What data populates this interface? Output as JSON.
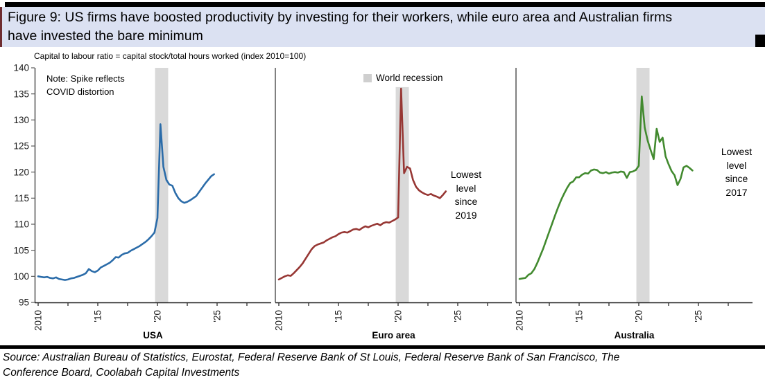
{
  "page": {
    "title_lines": [
      "Figure 9: US firms have boosted productivity by investing for their workers, while euro area and Australian firms",
      "have invested the bare minimum"
    ],
    "subtitle": "Capital to labour ratio = capital stock/total hours worked (index 2010=100)",
    "source_lines": [
      "Source: Australian Bureau of Statistics, Eurostat, Federal Reserve Bank of St Louis, Federal Reserve Bank of San Francisco, The",
      "Conference Board, Coolabah Capital Investments"
    ]
  },
  "annotations": {
    "note_lines": [
      "Note: Spike reflects",
      "COVID distortion"
    ],
    "legend_label": "World recession",
    "euro_lowest_lines": [
      "Lowest",
      "level",
      "since",
      "2019"
    ],
    "aus_lowest_lines": [
      "Lowest",
      "level",
      "since",
      "2017"
    ]
  },
  "colors": {
    "title_bg": "#dbe1f2",
    "accent_strip": "#6e2c30",
    "band": "#d9d9d9",
    "usa_line": "#2b6ca9",
    "euro_line": "#973734",
    "aus_line": "#428a2f",
    "axis": "#1a1a1a",
    "y_axis": "#595959",
    "separator": "#808080"
  },
  "chart_data": {
    "type": "line",
    "title": "Capital to labour ratio = capital stock/total hours worked (index 2010=100)",
    "ylim": [
      95,
      140
    ],
    "ytick_step": 5,
    "xtick_start": 2010,
    "xtick_step": 2.5,
    "xtick_count": 8,
    "xtick_labels": {
      "2010": "2010",
      "2015": "'15",
      "2020": "'20",
      "2025": "'25"
    },
    "recession_band_years": [
      2019.8,
      2020.9
    ],
    "legend": {
      "label": "World recession",
      "position": "top-middle-panel"
    },
    "grid": false,
    "panels": [
      {
        "label": "USA",
        "color": "#2b6ca9",
        "band_top_value": 140,
        "x_start": 2010,
        "x_step": 0.25,
        "values": [
          100.0,
          99.9,
          99.8,
          99.9,
          99.7,
          99.6,
          99.8,
          99.5,
          99.4,
          99.3,
          99.4,
          99.6,
          99.7,
          99.9,
          100.1,
          100.3,
          100.6,
          101.4,
          101.0,
          100.8,
          101.1,
          101.7,
          102.0,
          102.3,
          102.6,
          103.1,
          103.7,
          103.6,
          104.1,
          104.4,
          104.5,
          104.9,
          105.2,
          105.5,
          105.8,
          106.2,
          106.6,
          107.1,
          107.7,
          108.4,
          111.2,
          129.2,
          121.0,
          118.5,
          117.6,
          117.4,
          116.0,
          115.0,
          114.4,
          114.1,
          114.3,
          114.6,
          115.0,
          115.4,
          116.2,
          117.0,
          117.8,
          118.5,
          119.2,
          119.6
        ]
      },
      {
        "label": "Euro area",
        "color": "#973734",
        "band_top_value": 136.3,
        "x_start": 2010,
        "x_step": 0.25,
        "values": [
          99.4,
          99.7,
          100.0,
          100.2,
          100.1,
          100.6,
          101.2,
          101.8,
          102.5,
          103.4,
          104.3,
          105.2,
          105.8,
          106.1,
          106.3,
          106.5,
          106.9,
          107.2,
          107.5,
          107.7,
          108.1,
          108.4,
          108.5,
          108.4,
          108.7,
          109.0,
          109.1,
          108.9,
          109.3,
          109.6,
          109.4,
          109.7,
          109.9,
          110.1,
          109.8,
          110.2,
          110.4,
          110.3,
          110.6,
          110.9,
          111.3,
          136.0,
          119.8,
          121.0,
          120.7,
          118.5,
          117.2,
          116.5,
          116.1,
          115.8,
          115.6,
          115.8,
          115.5,
          115.3,
          115.0,
          115.6,
          116.3
        ]
      },
      {
        "label": "Australia",
        "color": "#428a2f",
        "band_top_value": 140,
        "x_start": 2010,
        "x_step": 0.25,
        "values": [
          99.5,
          99.6,
          99.7,
          100.3,
          100.6,
          101.4,
          102.6,
          104.0,
          105.4,
          107.0,
          108.6,
          110.2,
          111.8,
          113.3,
          114.7,
          115.9,
          117.0,
          117.9,
          118.2,
          119.0,
          119.0,
          119.5,
          119.8,
          119.7,
          120.3,
          120.5,
          120.4,
          119.9,
          119.8,
          120.0,
          119.7,
          119.9,
          120.0,
          119.9,
          120.1,
          120.0,
          118.9,
          120.0,
          120.1,
          120.4,
          121.2,
          134.5,
          128.5,
          126.0,
          124.2,
          122.5,
          128.3,
          125.8,
          126.6,
          123.0,
          121.5,
          120.2,
          119.4,
          117.5,
          118.7,
          120.9,
          121.2,
          120.8,
          120.3
        ]
      }
    ]
  }
}
